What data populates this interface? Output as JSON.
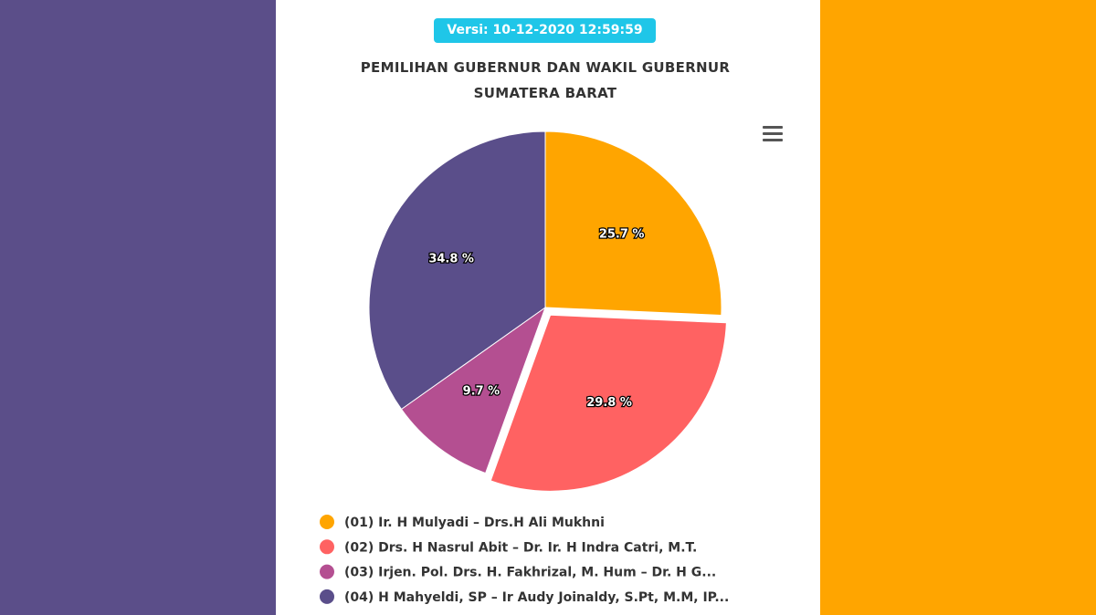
{
  "badge": "Versi: 10-12-2020 12:59:59",
  "chart_data": {
    "type": "pie",
    "title": "PEMILIHAN GUBERNUR DAN WAKIL GUBERNUR SUMATERA BARAT",
    "categories": [
      "(01) Ir. H Mulyadi – Drs.H Ali Mukhni",
      "(02) Drs. H Nasrul Abit – Dr. Ir. H Indra Catri, M.T.",
      "(03) Irjen. Pol. Drs. H. Fakhrizal, M. Hum – Dr. H G...",
      "(04) H Mahyeldi, SP – Ir Audy Joinaldy, S.Pt, M.M, IP..."
    ],
    "values": [
      25.7,
      29.8,
      9.7,
      34.8
    ],
    "value_labels": [
      "25.7 %",
      "29.8 %",
      "9.7 %",
      "34.8 %"
    ],
    "colors": [
      "#ffa500",
      "#ff6262",
      "#b44f91",
      "#5a4e8a"
    ],
    "exploded": [
      false,
      true,
      false,
      false
    ]
  }
}
